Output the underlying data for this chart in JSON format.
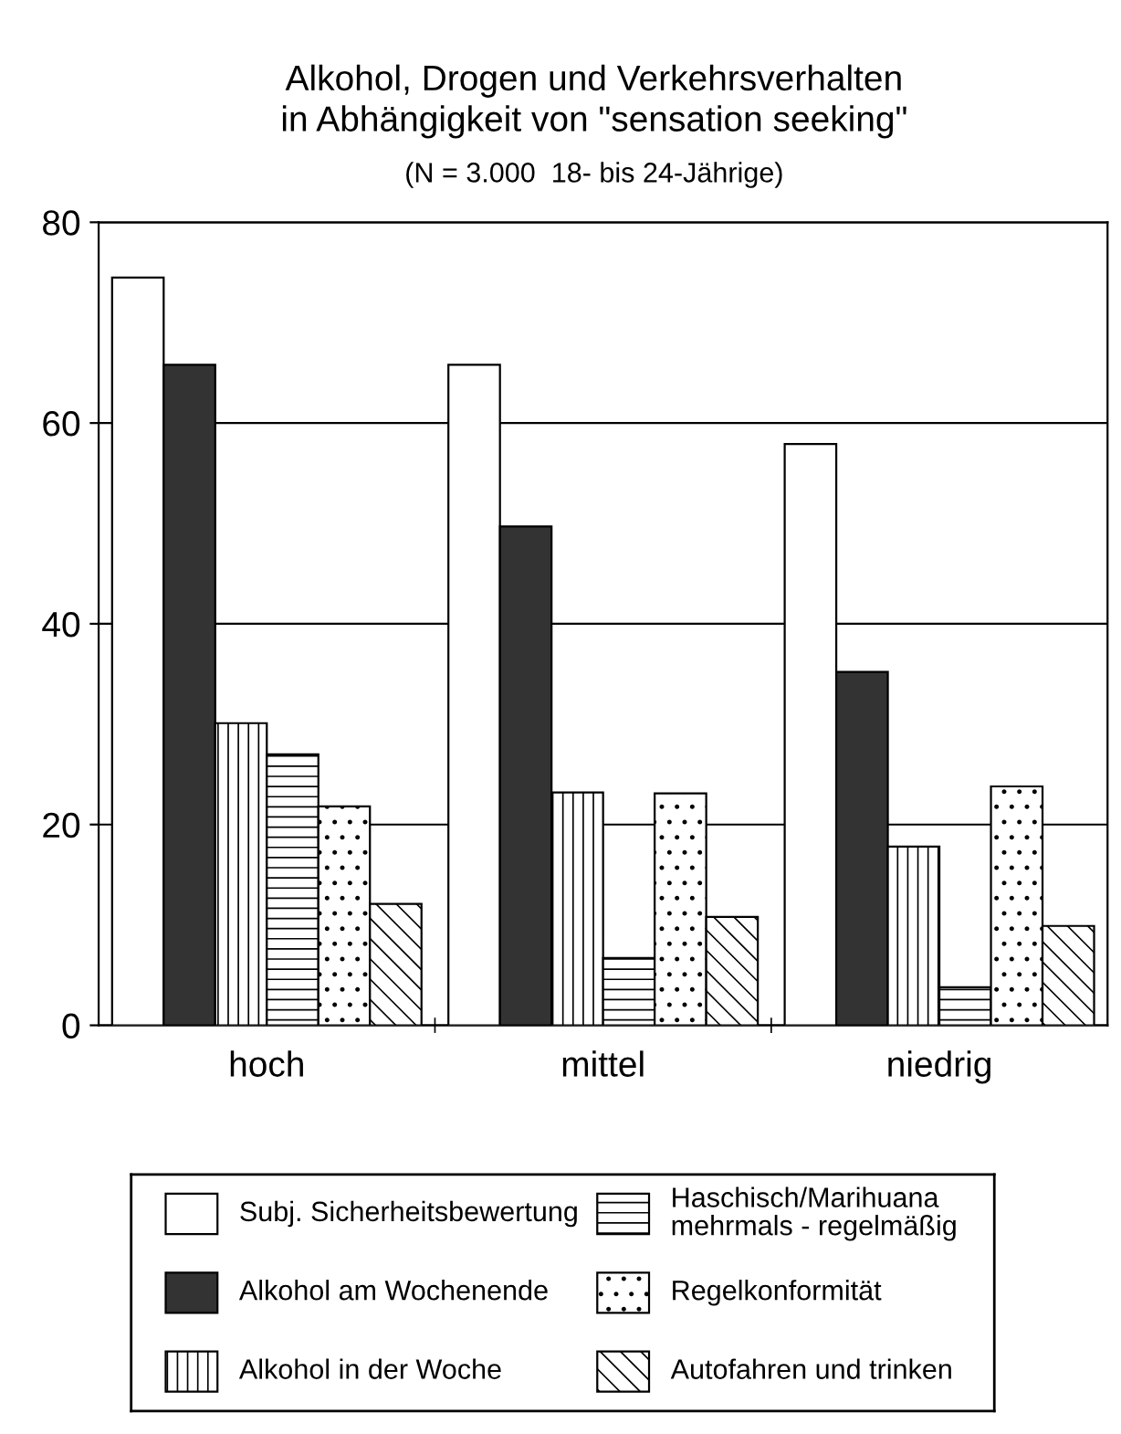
{
  "chart_data": {
    "type": "bar",
    "title": "Alkohol, Drogen und Verkehrsverhalten\nin Abhängigkeit von \"sensation seeking\"",
    "subtitle": "(N = 3.000  18- bis 24-Jährige)",
    "categories": [
      "hoch",
      "mittel",
      "niedrig"
    ],
    "series": [
      {
        "name": "Subj. Sicherheitsbewertung",
        "color": "#ffffff",
        "values": [
          74.5,
          65.8,
          57.9
        ]
      },
      {
        "name": "Alkohol am Wochenende",
        "color": "#333333",
        "values": [
          65.8,
          49.7,
          35.2
        ]
      },
      {
        "name": "Alkohol in der Woche",
        "color": "#ffffff",
        "values": [
          30.1,
          23.2,
          17.8
        ]
      },
      {
        "name": "Haschisch/Marihuana\nmehrmals - regelmäßig",
        "color": "#ffffff",
        "values": [
          27.0,
          6.7,
          3.8
        ]
      },
      {
        "name": "Regelkonformität",
        "color": "#ffffff",
        "values": [
          21.8,
          23.1,
          23.8
        ]
      },
      {
        "name": "Autofahren und trinken",
        "color": "#ffffff",
        "values": [
          12.1,
          10.8,
          9.9
        ]
      }
    ],
    "ylim": [
      0,
      80
    ],
    "yticks": [
      0,
      20,
      40,
      60,
      80
    ],
    "grid": "y",
    "legend": "bottom"
  }
}
